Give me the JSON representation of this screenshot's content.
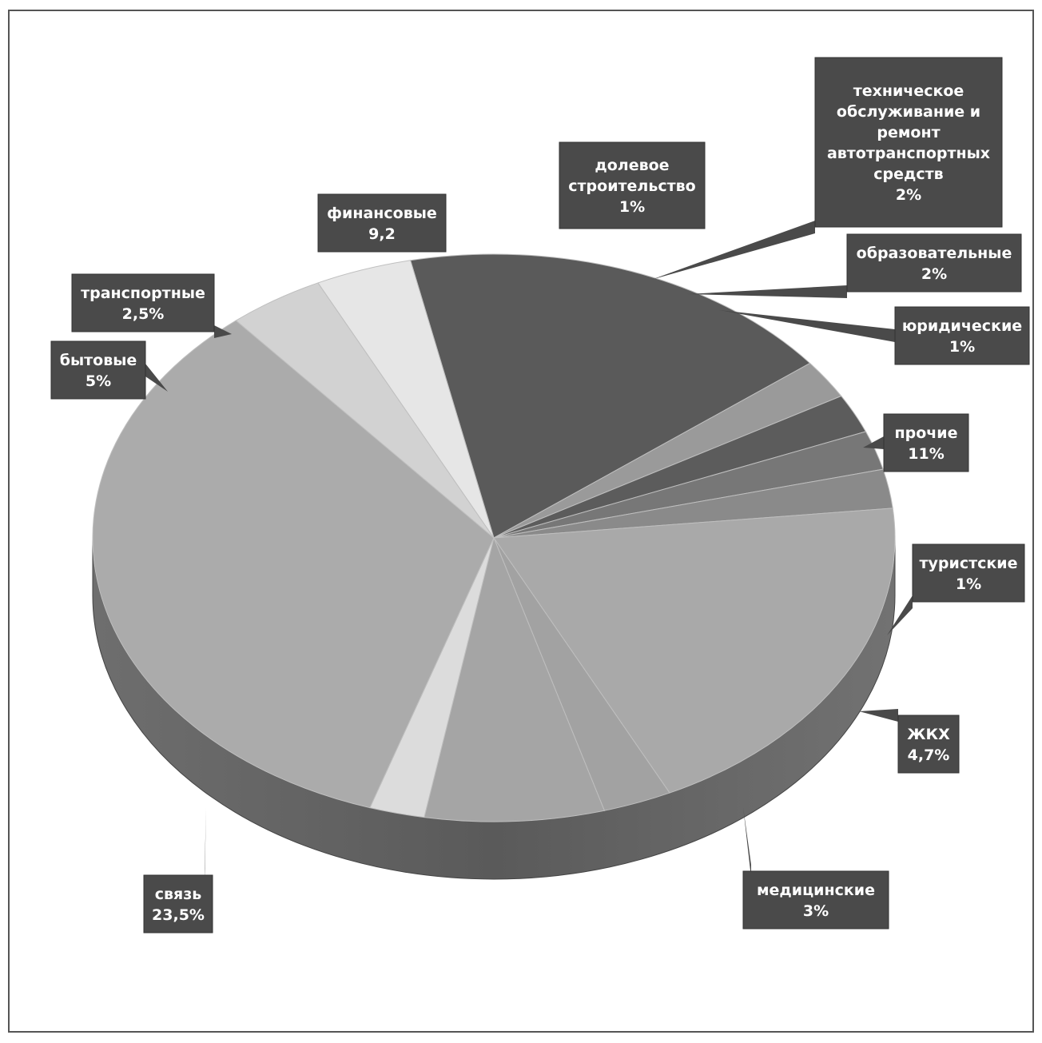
{
  "chart_data": {
    "type": "pie",
    "title": "",
    "legend": "none",
    "slices": [
      {
        "label": "финансовые",
        "value_text": "9,2",
        "value": 9.2,
        "color": "#5a5a5a"
      },
      {
        "label": "долевое строительство",
        "value_text": "1%",
        "value": 1,
        "color": "#9a9a9a"
      },
      {
        "label": "техническое обслуживание и ремонт автотранспортных средств",
        "value_text": "2%",
        "value": 2,
        "color": "#5c5c5c"
      },
      {
        "label": "образовательные",
        "value_text": "2%",
        "value": 2,
        "color": "#777777"
      },
      {
        "label": "юридические",
        "value_text": "1%",
        "value": 1,
        "color": "#8a8a8a"
      },
      {
        "label": "прочие",
        "value_text": "11%",
        "value": 11,
        "color": "#a9a9a9"
      },
      {
        "label": "туристские",
        "value_text": "1%",
        "value": 1,
        "color": "#a2a2a2"
      },
      {
        "label": "ЖКХ",
        "value_text": "4,7%",
        "value": 4.7,
        "color": "#a5a5a5"
      },
      {
        "label": "медицинские",
        "value_text": "3%",
        "value": 3,
        "color": "#dcdcdc"
      },
      {
        "label": "связь",
        "value_text": "23,5%",
        "value": 23.5,
        "color": "#ababab"
      },
      {
        "label": "бытовые",
        "value_text": "5%",
        "value": 5,
        "color": "#d2d2d2"
      },
      {
        "label": "транспортные",
        "value_text": "2,5%",
        "value": 2.5,
        "color": "#e6e6e6"
      }
    ]
  }
}
